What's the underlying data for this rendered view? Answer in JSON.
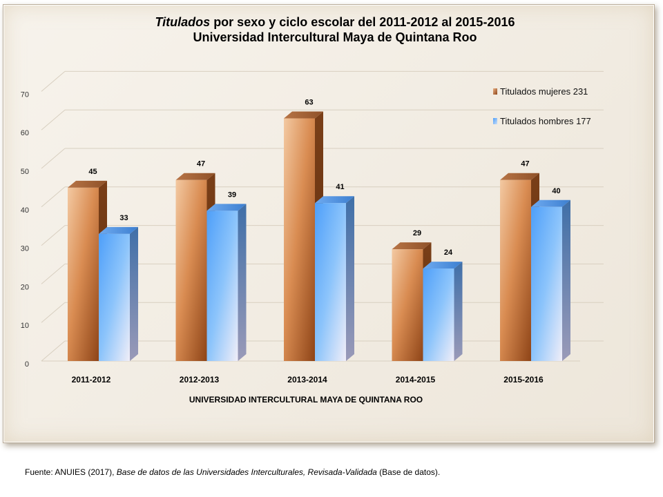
{
  "chart_data": {
    "type": "bar",
    "title_italic": "Titulados",
    "title_rest": " por sexo y ciclo escolar del 2011-2012 al 2015-2016",
    "subtitle": "Universidad Intercultural Maya de Quintana Roo",
    "xlabel": "UNIVERSIDAD INTERCULTURAL MAYA DE QUINTANA ROO",
    "ylabel": "",
    "ylim": [
      0,
      70
    ],
    "yticks": [
      "0",
      "10",
      "20",
      "30",
      "40",
      "50",
      "60",
      "70"
    ],
    "categories": [
      "2011-2012",
      "2012-2013",
      "2013-2014",
      "2014-2015",
      "2015-2016"
    ],
    "series": [
      {
        "name": "Titulados mujeres 231",
        "values": [
          45,
          47,
          63,
          29,
          47
        ],
        "color": "#c8733a"
      },
      {
        "name": "Titulados hombres 177",
        "values": [
          33,
          39,
          41,
          24,
          40
        ],
        "color": "#4d9ff7"
      }
    ],
    "grid": true,
    "legend_position": "top-right",
    "style": "3d-column"
  },
  "source": {
    "prefix": "Fuente: ANUIES (2017), ",
    "italic": "Base de datos de las Universidades  Interculturales, Revisada-Validada",
    "suffix": "  (Base de datos)."
  }
}
